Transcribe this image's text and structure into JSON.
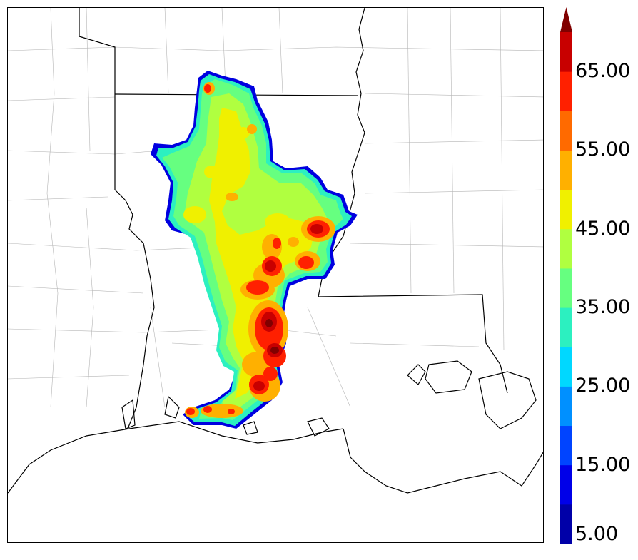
{
  "colorbar": {
    "ticks": [
      "5.00",
      "15.00",
      "25.00",
      "35.00",
      "45.00",
      "55.00",
      "65.00"
    ],
    "colors": [
      "#0000a8",
      "#0000e8",
      "#0044ff",
      "#0090ff",
      "#00d8ff",
      "#2cf0c0",
      "#66ff80",
      "#b0ff40",
      "#f0f000",
      "#ffb000",
      "#ff6a00",
      "#ff2000",
      "#c80000",
      "#800000"
    ],
    "extend": "max"
  },
  "map": {
    "region": "Louisiana, Mississippi, Arkansas, East Texas",
    "field_levels": [
      "5-10",
      "10-15",
      "15-20",
      "20-25",
      "25-30",
      "30-35",
      "35-40",
      "40-45",
      "45-50",
      "50-55",
      "55-60",
      "60-65",
      "65-70",
      ">70"
    ]
  }
}
